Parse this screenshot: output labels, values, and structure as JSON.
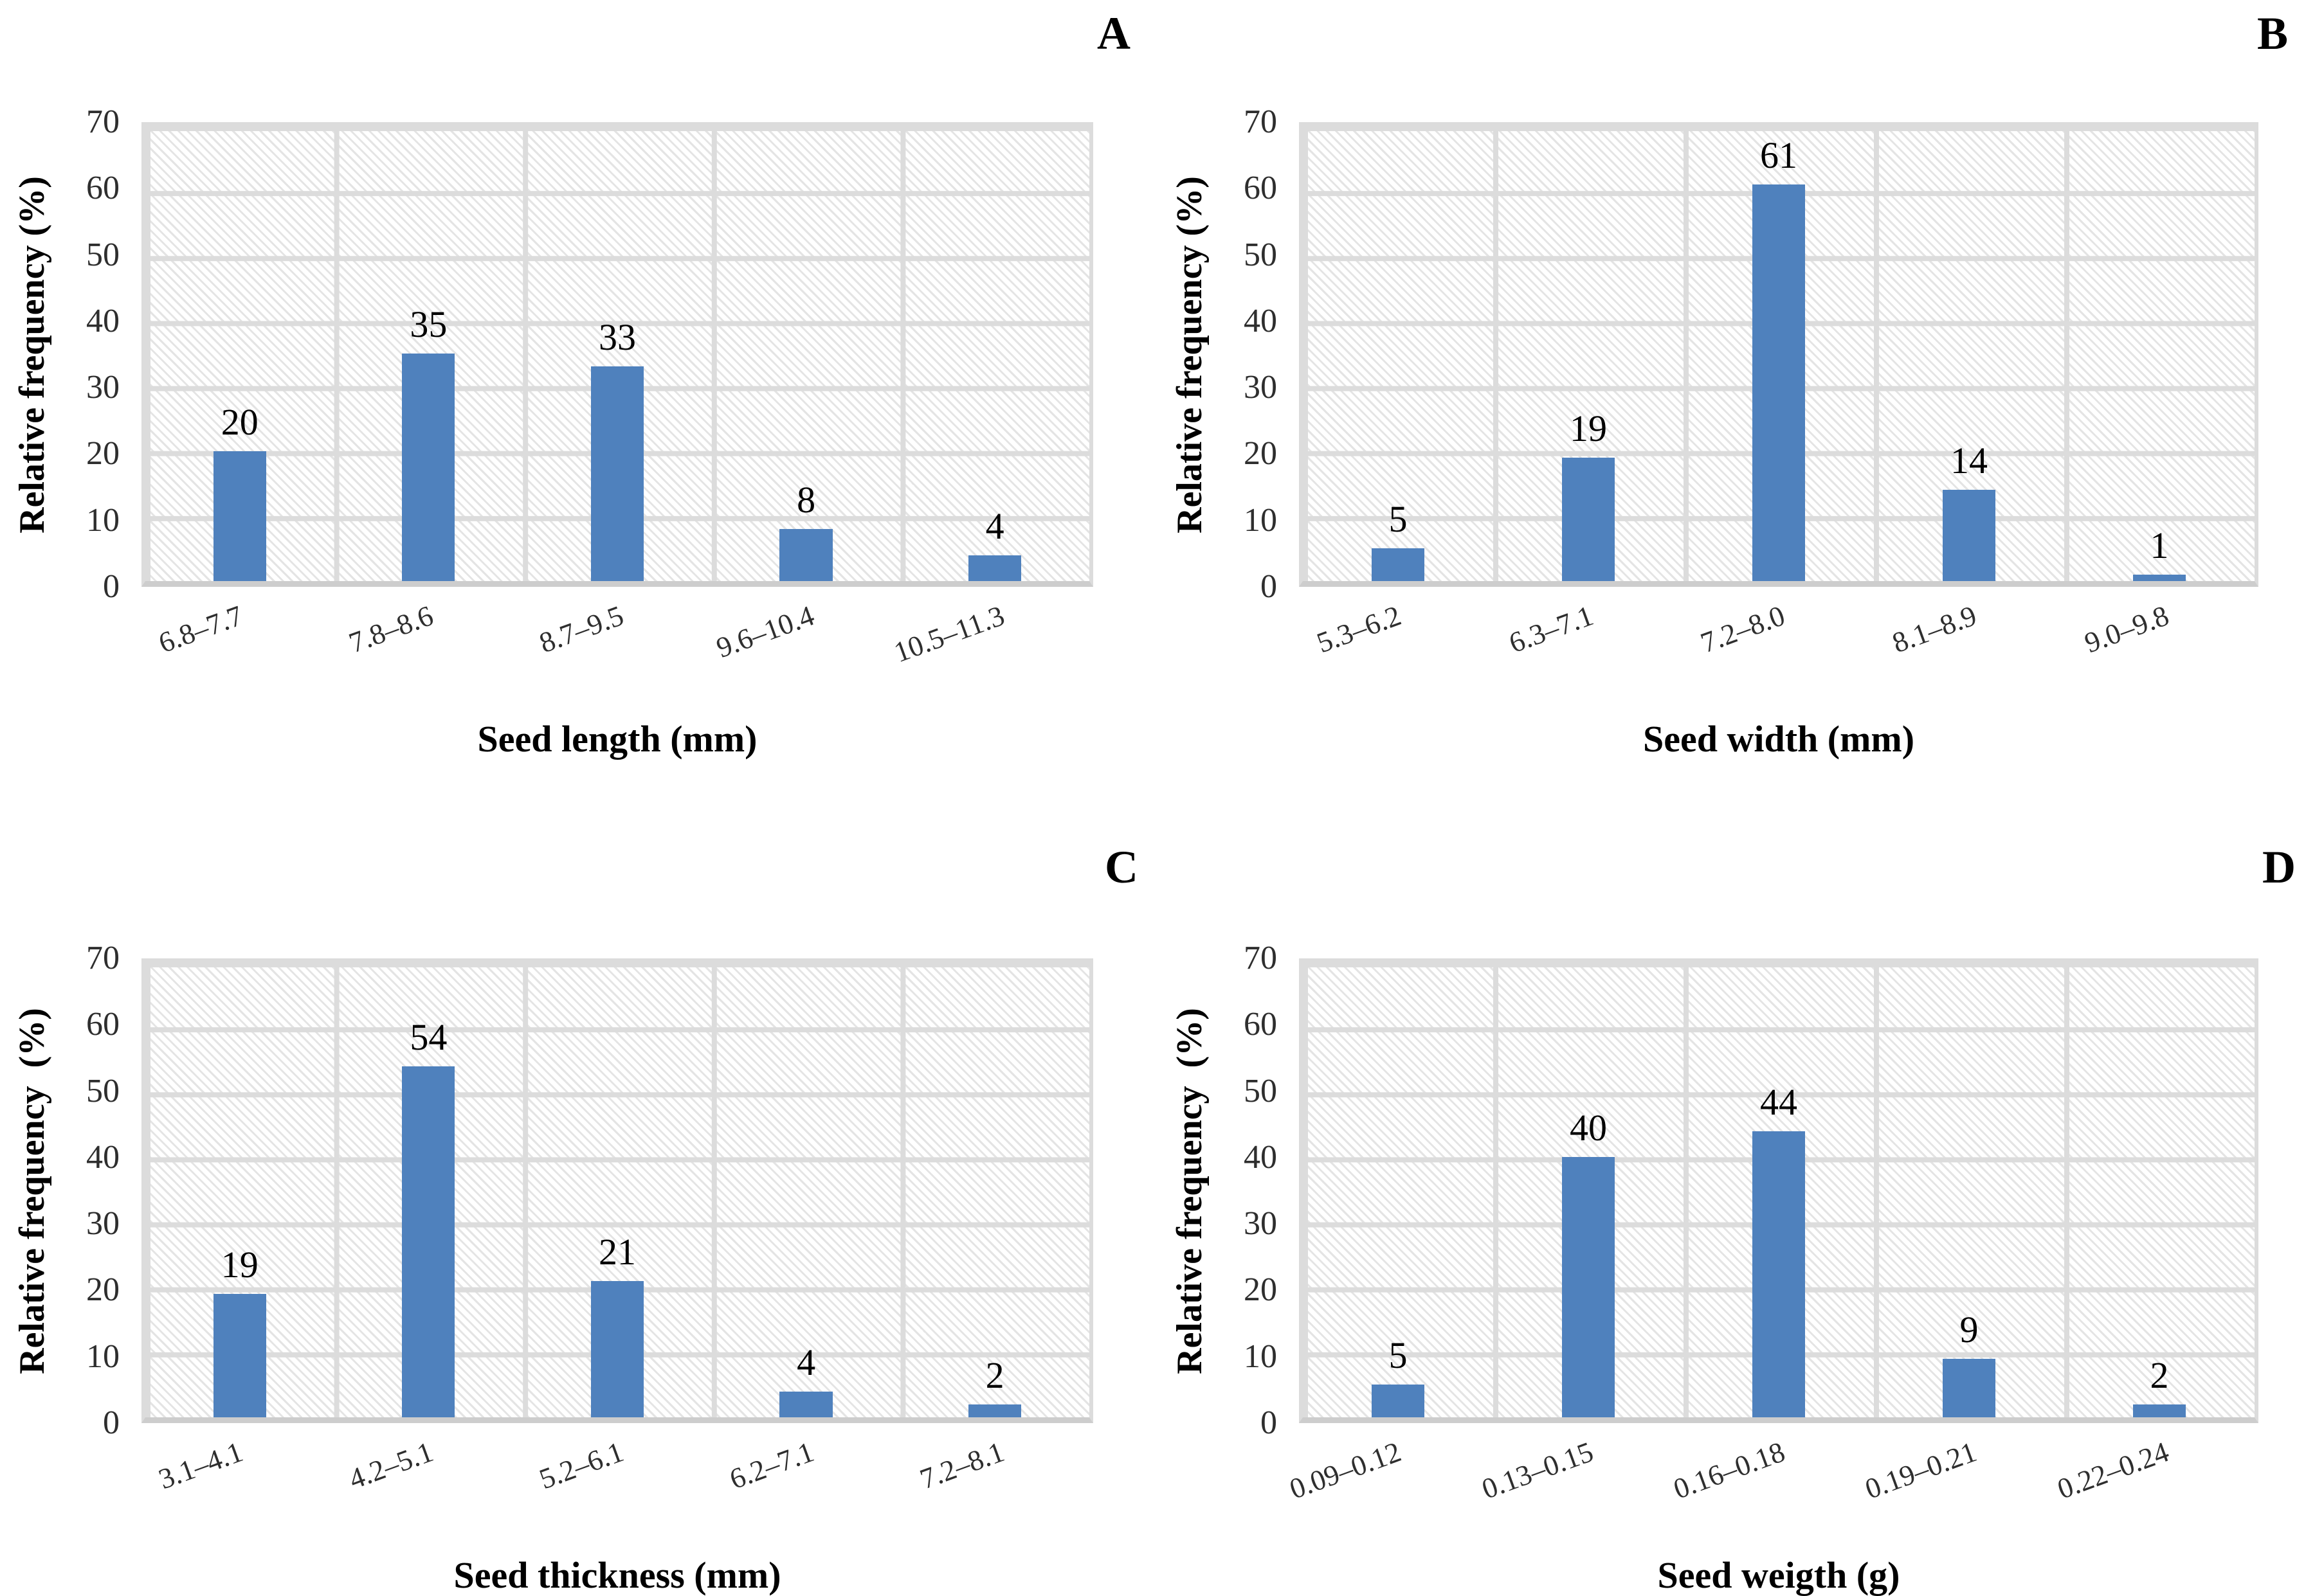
{
  "y_ticks": [
    "70",
    "60",
    "50",
    "40",
    "30",
    "20",
    "10",
    "0"
  ],
  "colors": {
    "bar": "#4f81bd",
    "grid": "#dcdcdc",
    "axis": "#cdcdcd",
    "hatch": "#e4e4e4",
    "text": "#000000",
    "tick": "#2e2e2e"
  },
  "chart_data": [
    {
      "type": "bar",
      "panel_label": "A",
      "ylabel": "Relative frequency (%)",
      "xlabel": "Seed length (mm)",
      "categories": [
        "6.8–7.7",
        "7.8–8.6",
        "8.7–9.5",
        "9.6–10.4",
        "10.5–11.3"
      ],
      "values": [
        20,
        35,
        33,
        8,
        4
      ],
      "ylim": [
        0,
        70
      ],
      "ytick_step": 10,
      "grid": true,
      "legend": "none",
      "bar_color": "#4f81bd"
    },
    {
      "type": "bar",
      "panel_label": "B",
      "ylabel": "Relative frequency (%)",
      "xlabel": "Seed width (mm)",
      "categories": [
        "5.3–6.2",
        "6.3–7.1",
        "7.2–8.0",
        "8.1–8.9",
        "9.0–9.8"
      ],
      "values": [
        5,
        19,
        61,
        14,
        1
      ],
      "ylim": [
        0,
        70
      ],
      "ytick_step": 10,
      "grid": true,
      "legend": "none",
      "bar_color": "#4f81bd"
    },
    {
      "type": "bar",
      "panel_label": "C",
      "ylabel": "Relative frequency  (%)",
      "xlabel": "Seed thickness (mm)",
      "categories": [
        "3.1–4.1",
        "4.2–5.1",
        "5.2–6.1",
        "6.2–7.1",
        "7.2–8.1"
      ],
      "values": [
        19,
        54,
        21,
        4,
        2
      ],
      "ylim": [
        0,
        70
      ],
      "ytick_step": 10,
      "grid": true,
      "legend": "none",
      "bar_color": "#4f81bd"
    },
    {
      "type": "bar",
      "panel_label": "D",
      "ylabel": "Relative frequency  (%)",
      "xlabel": "Seed weigth (g)",
      "categories": [
        "0.09–0.12",
        "0.13–0.15",
        "0.16–0.18",
        "0.19–0.21",
        "0.22–0.24"
      ],
      "values": [
        5,
        40,
        44,
        9,
        2
      ],
      "ylim": [
        0,
        70
      ],
      "ytick_step": 10,
      "grid": true,
      "legend": "none",
      "bar_color": "#4f81bd"
    }
  ]
}
